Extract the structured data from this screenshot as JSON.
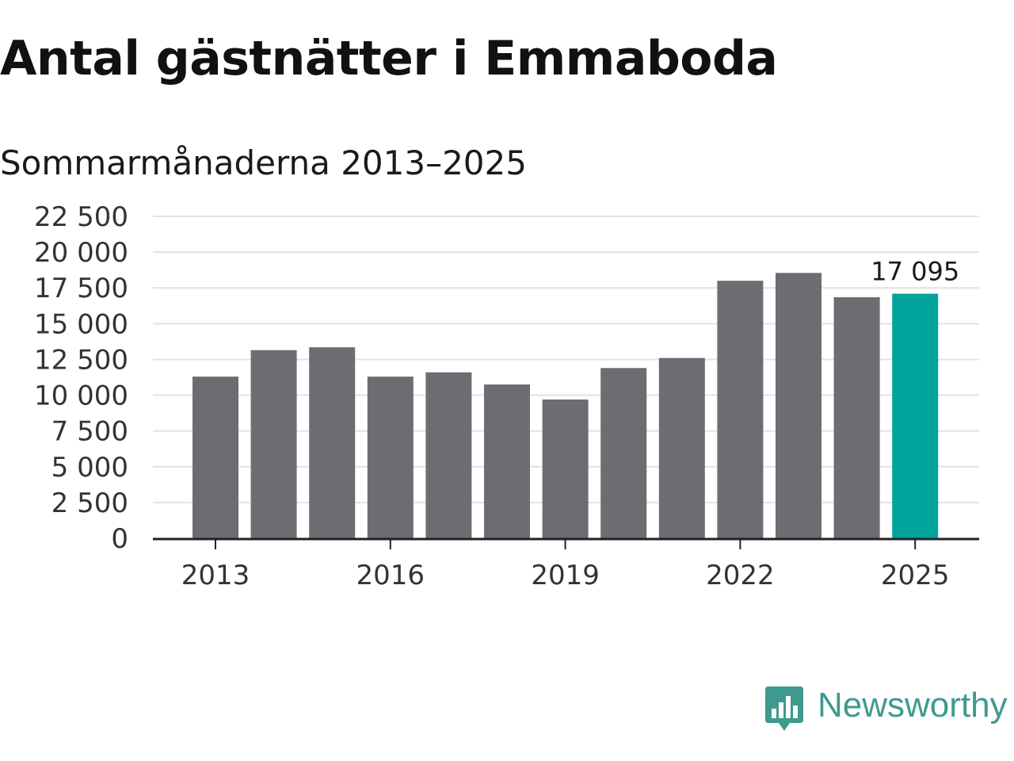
{
  "title": "Antal gästnätter i Emmaboda",
  "subtitle": "Sommarmånaderna 2013–2025",
  "brand": {
    "name": "Newsworthy",
    "icon": "newsworthy-logo-icon",
    "color": "#3e9a8f"
  },
  "colors": {
    "bar": "#6d6c72",
    "highlight": "#00a39a",
    "grid": "#e2e2e2",
    "axis": "#222222"
  },
  "chart_data": {
    "type": "bar",
    "title": "Antal gästnätter i Emmaboda",
    "subtitle": "Sommarmånaderna 2013–2025",
    "xlabel": "",
    "ylabel": "",
    "categories": [
      "2013",
      "2014",
      "2015",
      "2016",
      "2017",
      "2018",
      "2019",
      "2020",
      "2021",
      "2022",
      "2023",
      "2024",
      "2025"
    ],
    "values": [
      11300,
      13150,
      13350,
      11300,
      11600,
      10750,
      9700,
      11900,
      12600,
      18000,
      18550,
      16850,
      17095
    ],
    "highlight_index": 12,
    "data_labels": [
      {
        "index": 12,
        "text": "17 095"
      }
    ],
    "ylim": [
      0,
      22500
    ],
    "yticks": [
      0,
      2500,
      5000,
      7500,
      10000,
      12500,
      15000,
      17500,
      20000,
      22500
    ],
    "ytick_labels": [
      "0",
      "2 500",
      "5 000",
      "7 500",
      "10 000",
      "12 500",
      "15 000",
      "17 500",
      "20 000",
      "22 500"
    ],
    "xtick_labels": [
      "2013",
      "2016",
      "2019",
      "2022",
      "2025"
    ],
    "xtick_indices": [
      0,
      3,
      6,
      9,
      12
    ],
    "grid": true,
    "legend": "none"
  }
}
